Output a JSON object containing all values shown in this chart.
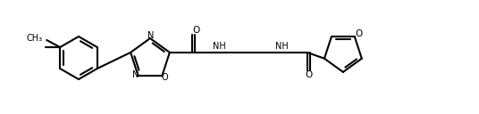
{
  "background_color": "#ffffff",
  "line_color": "#000000",
  "line_width": 1.5,
  "figsize": [
    5.36,
    1.28
  ],
  "dpi": 100,
  "atoms": {
    "N_label": "N",
    "O_label": "O",
    "H_label": "H",
    "NH_label": "NH"
  }
}
